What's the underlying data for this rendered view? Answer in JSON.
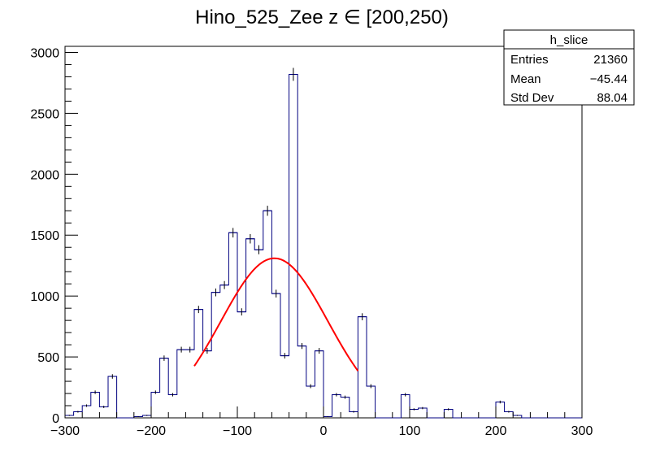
{
  "chart_data": {
    "type": "bar",
    "title": "Hino_525_Zee z  ∈ [200,250)",
    "xlabel": "",
    "ylabel": "",
    "xlim": [
      -300,
      300
    ],
    "ylim": [
      0,
      3050
    ],
    "x_ticks": [
      "−300",
      "−200",
      "−100",
      "0",
      "100",
      "200",
      "300"
    ],
    "y_ticks": [
      "0",
      "500",
      "1000",
      "1500",
      "2000",
      "2500",
      "3000"
    ],
    "bin_width": 10,
    "bin_low_edges": [
      -300,
      -290,
      -280,
      -270,
      -260,
      -250,
      -240,
      -230,
      -220,
      -210,
      -200,
      -190,
      -180,
      -170,
      -160,
      -150,
      -140,
      -130,
      -120,
      -110,
      -100,
      -90,
      -80,
      -70,
      -60,
      -50,
      -40,
      -30,
      -20,
      -10,
      0,
      10,
      20,
      30,
      40,
      50,
      60,
      70,
      80,
      90,
      100,
      110,
      120,
      130,
      140,
      150,
      160,
      170,
      180,
      190,
      200,
      210,
      220,
      230,
      240,
      250,
      260,
      270,
      280,
      290
    ],
    "series": [
      {
        "values": [
          20,
          50,
          100,
          210,
          90,
          340,
          0,
          0,
          10,
          20,
          210,
          490,
          190,
          560,
          560,
          890,
          550,
          1030,
          1090,
          1520,
          870,
          1470,
          1380,
          1700,
          1020,
          510,
          2820,
          590,
          260,
          550,
          10,
          190,
          170,
          50,
          830,
          260,
          0,
          0,
          0,
          190,
          70,
          80,
          0,
          0,
          70,
          0,
          0,
          0,
          0,
          0,
          130,
          50,
          20,
          0,
          0,
          0,
          0,
          0,
          0,
          0
        ],
        "color": "#000080"
      }
    ],
    "fit": {
      "type": "gaussian",
      "color": "#ff0000",
      "amplitude": 1310,
      "mean": -57,
      "sigma": 62,
      "x_range": [
        -150,
        40
      ]
    },
    "stats_box": {
      "name": "h_slice",
      "rows": [
        {
          "label": "Entries",
          "value": "21360"
        },
        {
          "label": "Mean",
          "value": "−45.44"
        },
        {
          "label": "Std Dev",
          "value": "88.04"
        }
      ]
    },
    "grid": false,
    "legend": "none"
  }
}
